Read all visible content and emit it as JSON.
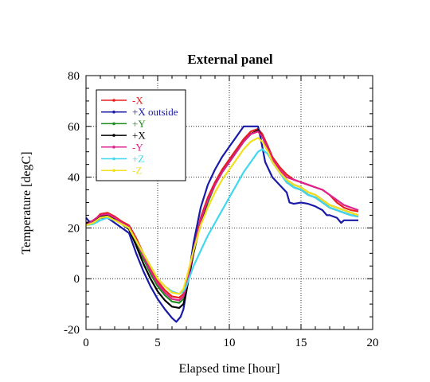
{
  "chart_data": {
    "type": "line",
    "title": "External panel",
    "xlabel": "Elapsed time [hour]",
    "ylabel": "Temperature [degC]",
    "xlim": [
      0,
      20
    ],
    "ylim": [
      -20,
      80
    ],
    "xticks": [
      0,
      5,
      10,
      15,
      20
    ],
    "yticks": [
      -20,
      0,
      20,
      40,
      60,
      80
    ],
    "grid": "dotted",
    "legend_position": "top-left",
    "series": [
      {
        "name": "-X",
        "color": "#e8201e",
        "points": [
          [
            0,
            22
          ],
          [
            0.6,
            23
          ],
          [
            1,
            25.5
          ],
          [
            1.5,
            26
          ],
          [
            2,
            24.5
          ],
          [
            2.5,
            22.5
          ],
          [
            3,
            21
          ],
          [
            3.5,
            16
          ],
          [
            4,
            10
          ],
          [
            4.5,
            4
          ],
          [
            5,
            -1
          ],
          [
            5.5,
            -4.5
          ],
          [
            6,
            -7
          ],
          [
            6.5,
            -7.5
          ],
          [
            6.8,
            -6
          ],
          [
            7,
            -2
          ],
          [
            7.5,
            12
          ],
          [
            8,
            24
          ],
          [
            8.5,
            32
          ],
          [
            9,
            38
          ],
          [
            9.5,
            43
          ],
          [
            10,
            47
          ],
          [
            10.5,
            51
          ],
          [
            11,
            55
          ],
          [
            11.5,
            58
          ],
          [
            12,
            59
          ],
          [
            12.3,
            57
          ],
          [
            12.7,
            52
          ],
          [
            13,
            48
          ],
          [
            13.5,
            44
          ],
          [
            14,
            41
          ],
          [
            14.5,
            39
          ],
          [
            15,
            38
          ],
          [
            15.5,
            37
          ],
          [
            16,
            36
          ],
          [
            16.5,
            35
          ],
          [
            17,
            33
          ],
          [
            17.5,
            30
          ],
          [
            18,
            28
          ],
          [
            18.5,
            27
          ],
          [
            19,
            26.5
          ]
        ]
      },
      {
        "name": "+X outside",
        "color": "#1a1aa8",
        "points": [
          [
            0,
            24
          ],
          [
            0.3,
            22
          ],
          [
            0.6,
            22
          ],
          [
            1,
            24
          ],
          [
            1.5,
            24
          ],
          [
            2,
            22
          ],
          [
            2.5,
            20
          ],
          [
            3,
            18
          ],
          [
            3.5,
            10
          ],
          [
            4,
            3
          ],
          [
            4.5,
            -3
          ],
          [
            5,
            -8
          ],
          [
            5.5,
            -12
          ],
          [
            6,
            -15.5
          ],
          [
            6.3,
            -17
          ],
          [
            6.6,
            -15
          ],
          [
            6.8,
            -12
          ],
          [
            7,
            -5
          ],
          [
            7.5,
            14
          ],
          [
            8,
            28
          ],
          [
            8.5,
            37
          ],
          [
            9,
            43
          ],
          [
            9.5,
            48
          ],
          [
            10,
            52
          ],
          [
            10.5,
            56
          ],
          [
            11,
            60
          ],
          [
            11.5,
            60
          ],
          [
            12,
            60
          ],
          [
            12.2,
            55
          ],
          [
            12.5,
            46
          ],
          [
            13,
            40
          ],
          [
            13.5,
            37
          ],
          [
            14,
            34
          ],
          [
            14.2,
            30
          ],
          [
            14.5,
            29.5
          ],
          [
            15,
            30
          ],
          [
            15.5,
            29.5
          ],
          [
            16,
            28.5
          ],
          [
            16.5,
            27
          ],
          [
            16.8,
            25
          ],
          [
            17,
            25
          ],
          [
            17.5,
            24
          ],
          [
            17.8,
            22
          ],
          [
            18,
            23
          ],
          [
            18.5,
            23
          ],
          [
            19,
            23
          ]
        ]
      },
      {
        "name": "+Y",
        "color": "#1e8c1e",
        "points": [
          [
            0,
            21
          ],
          [
            0.5,
            22
          ],
          [
            1,
            24.5
          ],
          [
            1.5,
            25
          ],
          [
            2,
            23.5
          ],
          [
            2.5,
            22
          ],
          [
            3,
            20
          ],
          [
            3.5,
            14
          ],
          [
            4,
            8
          ],
          [
            4.5,
            2
          ],
          [
            5,
            -3
          ],
          [
            5.5,
            -6.5
          ],
          [
            6,
            -9
          ],
          [
            6.5,
            -9.5
          ],
          [
            6.8,
            -8
          ],
          [
            7,
            -4
          ],
          [
            7.5,
            10
          ],
          [
            8,
            22
          ],
          [
            8.5,
            30
          ],
          [
            9,
            37
          ],
          [
            9.5,
            42
          ],
          [
            10,
            46
          ],
          [
            10.5,
            50
          ],
          [
            11,
            54
          ],
          [
            11.5,
            57
          ],
          [
            12,
            58
          ],
          [
            12.3,
            56
          ],
          [
            12.7,
            51
          ],
          [
            13,
            46
          ],
          [
            13.5,
            42
          ],
          [
            14,
            39
          ],
          [
            14.5,
            37
          ],
          [
            15,
            36
          ],
          [
            15.5,
            34
          ],
          [
            16,
            33
          ],
          [
            16.5,
            31
          ],
          [
            17,
            29
          ],
          [
            17.5,
            28
          ],
          [
            18,
            27
          ],
          [
            18.5,
            26
          ],
          [
            19,
            25
          ]
        ]
      },
      {
        "name": "+X",
        "color": "#000000",
        "points": [
          [
            0,
            22
          ],
          [
            0.5,
            22
          ],
          [
            1,
            24.5
          ],
          [
            1.5,
            25
          ],
          [
            2,
            23.5
          ],
          [
            2.5,
            21.5
          ],
          [
            3,
            19.5
          ],
          [
            3.5,
            13
          ],
          [
            4,
            6
          ],
          [
            4.5,
            0
          ],
          [
            5,
            -5
          ],
          [
            5.5,
            -8.5
          ],
          [
            6,
            -11
          ],
          [
            6.5,
            -11.5
          ],
          [
            6.8,
            -10
          ],
          [
            7,
            -5
          ],
          [
            7.5,
            10
          ],
          [
            8,
            22
          ],
          [
            8.5,
            31
          ],
          [
            9,
            37
          ],
          [
            9.5,
            42
          ],
          [
            10,
            46
          ],
          [
            10.5,
            50
          ],
          [
            11,
            54
          ],
          [
            11.5,
            57
          ],
          [
            12,
            58.5
          ],
          [
            12.3,
            56
          ],
          [
            12.7,
            51
          ],
          [
            13,
            46
          ],
          [
            13.5,
            42
          ],
          [
            14,
            38
          ],
          [
            14.5,
            36
          ],
          [
            15,
            35
          ],
          [
            15.5,
            33
          ],
          [
            16,
            32
          ],
          [
            16.5,
            30
          ],
          [
            17,
            28
          ],
          [
            17.5,
            27
          ],
          [
            18,
            26
          ],
          [
            18.5,
            25
          ],
          [
            19,
            24.5
          ]
        ]
      },
      {
        "name": "-Y",
        "color": "#e0208c",
        "points": [
          [
            0,
            21
          ],
          [
            0.5,
            23
          ],
          [
            1,
            25
          ],
          [
            1.5,
            25.5
          ],
          [
            2,
            24
          ],
          [
            2.5,
            22
          ],
          [
            3,
            20.5
          ],
          [
            3.5,
            15
          ],
          [
            4,
            9
          ],
          [
            4.5,
            3
          ],
          [
            5,
            -2
          ],
          [
            5.5,
            -5.5
          ],
          [
            6,
            -8
          ],
          [
            6.5,
            -8.5
          ],
          [
            6.8,
            -7
          ],
          [
            7,
            -3
          ],
          [
            7.5,
            11
          ],
          [
            8,
            23
          ],
          [
            8.5,
            31
          ],
          [
            9,
            37
          ],
          [
            9.5,
            42
          ],
          [
            10,
            46
          ],
          [
            10.5,
            50
          ],
          [
            11,
            54
          ],
          [
            11.5,
            57
          ],
          [
            12,
            58
          ],
          [
            12.3,
            56
          ],
          [
            12.7,
            51
          ],
          [
            13,
            47
          ],
          [
            13.5,
            43
          ],
          [
            14,
            40
          ],
          [
            14.5,
            39
          ],
          [
            15,
            38
          ],
          [
            15.5,
            37
          ],
          [
            16,
            36
          ],
          [
            16.5,
            35
          ],
          [
            17,
            33
          ],
          [
            17.5,
            31
          ],
          [
            18,
            29
          ],
          [
            18.5,
            28
          ],
          [
            19,
            27
          ]
        ]
      },
      {
        "name": "+Z",
        "color": "#40d8f0",
        "points": [
          [
            0,
            21
          ],
          [
            0.5,
            21.5
          ],
          [
            1,
            23
          ],
          [
            1.5,
            24
          ],
          [
            2,
            23
          ],
          [
            2.5,
            21.5
          ],
          [
            3,
            20
          ],
          [
            3.5,
            15
          ],
          [
            4,
            10
          ],
          [
            4.5,
            5
          ],
          [
            5,
            0
          ],
          [
            5.5,
            -3
          ],
          [
            6,
            -5
          ],
          [
            6.5,
            -6
          ],
          [
            6.8,
            -5
          ],
          [
            7,
            -3
          ],
          [
            7.5,
            5
          ],
          [
            8,
            11
          ],
          [
            8.5,
            17
          ],
          [
            9,
            22
          ],
          [
            9.5,
            27
          ],
          [
            10,
            32
          ],
          [
            10.5,
            37
          ],
          [
            11,
            42
          ],
          [
            11.5,
            46
          ],
          [
            12,
            50
          ],
          [
            12.3,
            51
          ],
          [
            12.7,
            49
          ],
          [
            13,
            46
          ],
          [
            13.5,
            42
          ],
          [
            14,
            38
          ],
          [
            14.5,
            36
          ],
          [
            15,
            35
          ],
          [
            15.5,
            33
          ],
          [
            16,
            32
          ],
          [
            16.5,
            30
          ],
          [
            17,
            28
          ],
          [
            17.5,
            27
          ],
          [
            18,
            26
          ],
          [
            18.5,
            25
          ],
          [
            19,
            24.5
          ]
        ]
      },
      {
        "name": "-Z",
        "color": "#f0e020",
        "points": [
          [
            0,
            21
          ],
          [
            0.5,
            22
          ],
          [
            1,
            24
          ],
          [
            1.5,
            24.5
          ],
          [
            2,
            23
          ],
          [
            2.5,
            21.5
          ],
          [
            3,
            20
          ],
          [
            3.5,
            15
          ],
          [
            4,
            10
          ],
          [
            4.5,
            5
          ],
          [
            5,
            0
          ],
          [
            5.5,
            -3
          ],
          [
            6,
            -5.5
          ],
          [
            6.5,
            -6
          ],
          [
            6.8,
            -4
          ],
          [
            7,
            0
          ],
          [
            7.5,
            11
          ],
          [
            8,
            21
          ],
          [
            8.5,
            28
          ],
          [
            9,
            34
          ],
          [
            9.5,
            39
          ],
          [
            10,
            43
          ],
          [
            10.5,
            47
          ],
          [
            11,
            51
          ],
          [
            11.5,
            54
          ],
          [
            12,
            55.5
          ],
          [
            12.3,
            54
          ],
          [
            12.7,
            50
          ],
          [
            13,
            46
          ],
          [
            13.5,
            42
          ],
          [
            14,
            39
          ],
          [
            14.5,
            37
          ],
          [
            15,
            36
          ],
          [
            15.5,
            34
          ],
          [
            16,
            33
          ],
          [
            16.5,
            31
          ],
          [
            17,
            29
          ],
          [
            17.5,
            28
          ],
          [
            18,
            27
          ],
          [
            18.5,
            26
          ],
          [
            19,
            25
          ]
        ]
      }
    ]
  }
}
